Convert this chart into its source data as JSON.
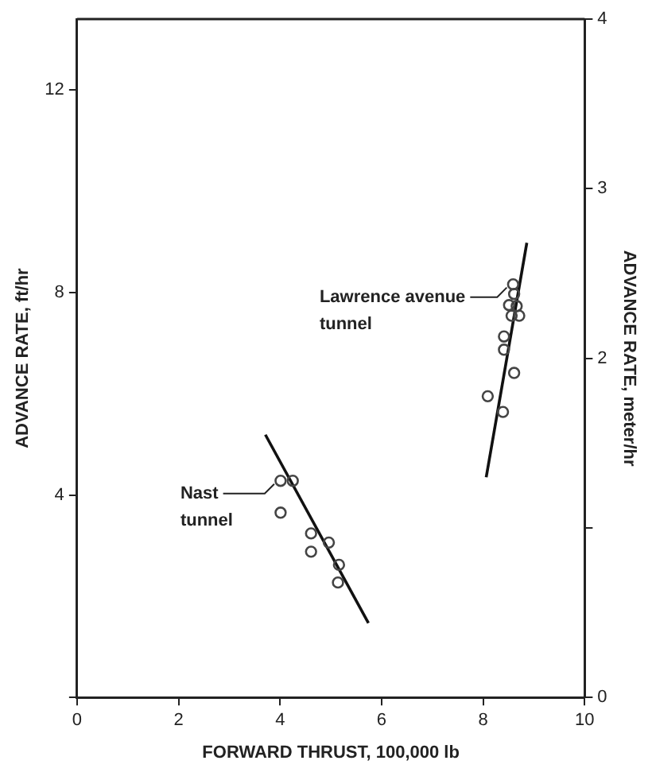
{
  "chart_data": {
    "type": "scatter",
    "xlabel": "FORWARD THRUST, 100,000 lb",
    "ylabel": "ADVANCE RATE, ft/hr",
    "y2label": "ADVANCE RATE, meter/hr",
    "xlim": [
      0,
      10
    ],
    "xticks": [
      0,
      2,
      4,
      6,
      8,
      10
    ],
    "ylim": [
      0,
      13.4
    ],
    "yticks": [
      {
        "value": 0,
        "label": null
      },
      4,
      8,
      12
    ],
    "y2lim": [
      0,
      4
    ],
    "y2ticks": [
      0,
      {
        "value": 1,
        "label": null
      },
      2,
      3,
      4
    ],
    "grid": false,
    "legend": false,
    "series": [
      {
        "name": "Nast tunnel",
        "marker": "circle",
        "color": "#444444",
        "x": [
          4.01,
          4.25,
          4.01,
          4.61,
          4.96,
          4.61,
          5.16,
          5.14
        ],
        "values": [
          4.28,
          4.28,
          3.65,
          3.24,
          3.06,
          2.88,
          2.62,
          2.27
        ]
      },
      {
        "type": "line",
        "marker": "none",
        "color": "#111111",
        "x": [
          3.71,
          5.74
        ],
        "values": [
          5.19,
          1.47
        ]
      },
      {
        "name": "Lawrence avenue tunnel",
        "marker": "circle",
        "color": "#444444",
        "x": [
          8.59,
          8.61,
          8.51,
          8.66,
          8.71,
          8.56,
          8.41,
          8.41,
          8.61,
          8.09,
          8.39
        ],
        "values": [
          8.16,
          7.97,
          7.75,
          7.73,
          7.54,
          7.54,
          7.13,
          6.87,
          6.41,
          5.95,
          5.64
        ]
      },
      {
        "type": "line",
        "marker": "none",
        "color": "#111111",
        "x": [
          8.06,
          8.86
        ],
        "values": [
          4.35,
          8.98
        ]
      }
    ]
  }
}
